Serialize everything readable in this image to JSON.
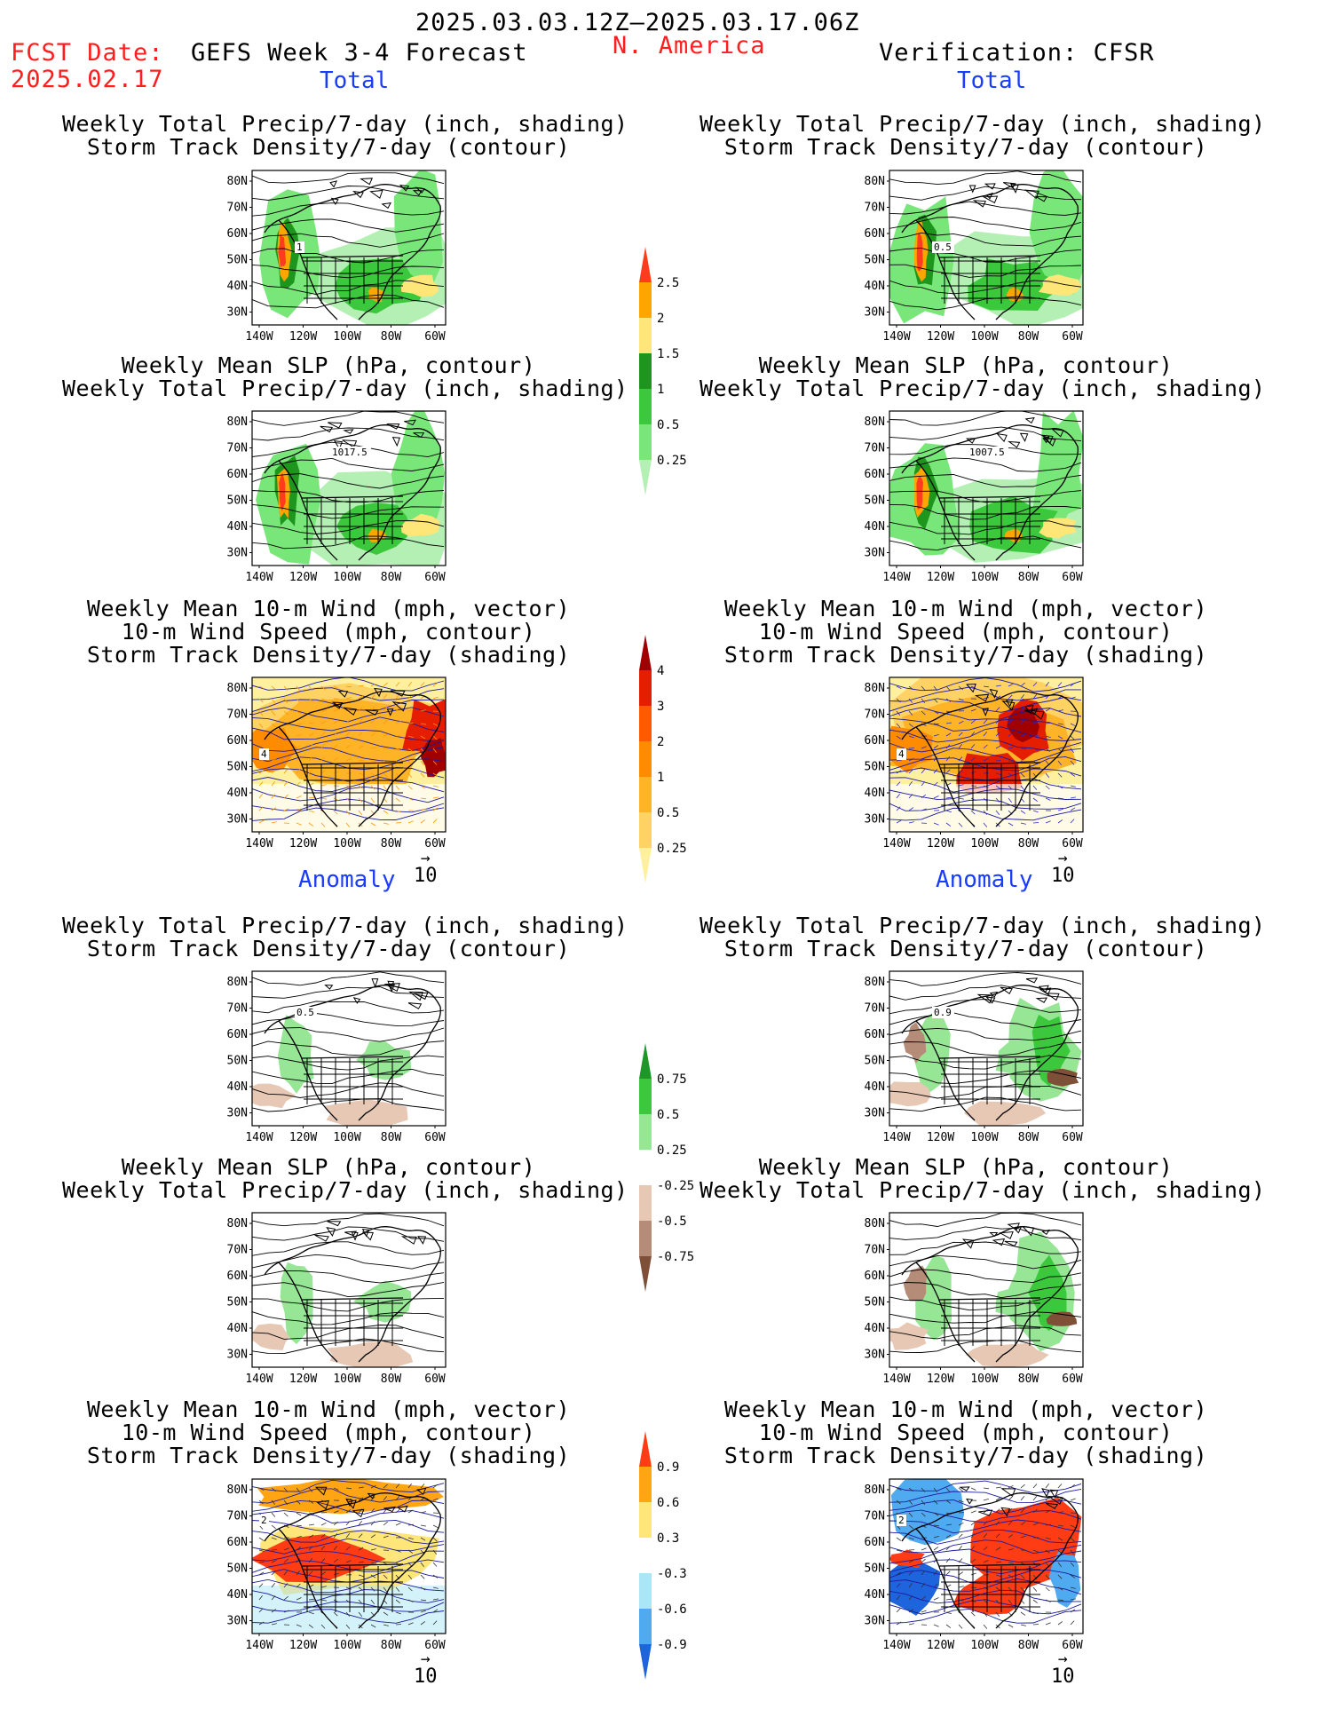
{
  "header": {
    "date_range": "2025.03.03.12Z–2025.03.17.06Z",
    "fcst_label": "FCST Date:",
    "fcst_date": "2025.02.17",
    "model": "GEFS Week 3-4 Forecast",
    "region": "N. America",
    "verification": "Verification: CFSR"
  },
  "sections": {
    "left_total": "Total",
    "right_total": "Total",
    "left_anomaly": "Anomaly",
    "right_anomaly": "Anomaly"
  },
  "titles": {
    "precip_track": [
      "Weekly Total Precip/7-day (inch, shading)",
      "Storm Track Density/7-day (contour)"
    ],
    "slp_precip": [
      "Weekly Mean SLP (hPa, contour)",
      "Weekly Total Precip/7-day (inch, shading)"
    ],
    "wind": [
      "Weekly Mean 10-m Wind (mph, vector)",
      "10-m Wind Speed (mph, contour)",
      "Storm Track Density/7-day (shading)"
    ]
  },
  "axes": {
    "lat_ticks": [
      "80N",
      "70N",
      "60N",
      "50N",
      "40N",
      "30N"
    ],
    "lon_ticks": [
      "140W",
      "120W",
      "100W",
      "80W",
      "60W"
    ]
  },
  "vector_ref": "10",
  "contour_labels": {
    "L1": "1",
    "R1": "0.5",
    "L2": "1017.5",
    "R2": "1007.5",
    "L3": "4",
    "R3": "4",
    "L4": "0.5",
    "R4": "0.9",
    "L6": "2",
    "R6": "2"
  },
  "colorbars": {
    "precip_total": {
      "labels": [
        "0.25",
        "0.5",
        "1",
        "1.5",
        "2",
        "2.5"
      ],
      "colors": [
        "#b4f0b4",
        "#78e678",
        "#3cc83c",
        "#1e961e",
        "#ffe678",
        "#ffa500",
        "#ff3c1e"
      ]
    },
    "track_total": {
      "labels": [
        "0.25",
        "0.5",
        "1",
        "2",
        "3",
        "4"
      ],
      "colors": [
        "#fff0a0",
        "#ffd264",
        "#ffb428",
        "#ff8c00",
        "#ff5a00",
        "#e61e00",
        "#a00000"
      ]
    },
    "precip_anom": {
      "labels": [
        "0.75",
        "0.5",
        "0.25",
        "-0.25",
        "-0.5",
        "-0.75"
      ],
      "colors": [
        "#1e9628",
        "#3cc83c",
        "#96e696",
        "#ffffff",
        "#e6c8b4",
        "#b48c78",
        "#7d5037"
      ]
    },
    "track_anom": {
      "labels": [
        "0.9",
        "0.6",
        "0.3",
        "-0.3",
        "-0.6",
        "-0.9"
      ],
      "colors": [
        "#ff3c14",
        "#ffa514",
        "#ffe678",
        "#ffffff",
        "#aae6f5",
        "#50aaf0",
        "#1e64dc"
      ]
    }
  },
  "colors": {
    "header_red": "#ff1e1e",
    "section_blue": "#1a3cff"
  }
}
